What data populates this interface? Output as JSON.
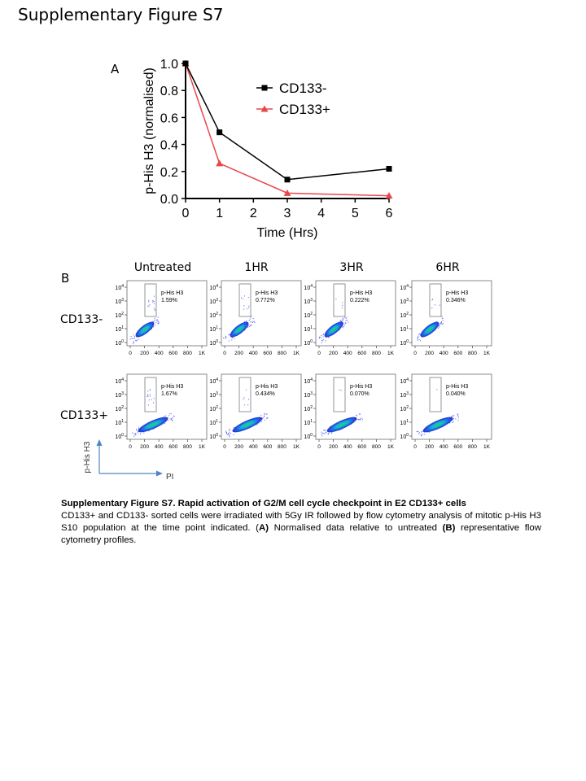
{
  "figure_title": "Supplementary Figure S7",
  "panel_a": {
    "letter": "A",
    "chart_data": {
      "type": "line",
      "xlabel": "Time (Hrs)",
      "ylabel": "p-His H3 (normalised)",
      "x_ticks": [
        "0",
        "1",
        "2",
        "3",
        "4",
        "5",
        "6"
      ],
      "y_ticks": [
        "0.0",
        "0.2",
        "0.4",
        "0.6",
        "0.8",
        "1.0"
      ],
      "xlim": [
        0,
        6
      ],
      "ylim": [
        0,
        1.0
      ],
      "grid": false,
      "legend_position": "top-right",
      "series": [
        {
          "name": "CD133-",
          "color": "#000000",
          "marker": "square",
          "x": [
            0,
            1,
            3,
            6
          ],
          "y": [
            1.0,
            0.49,
            0.14,
            0.22
          ]
        },
        {
          "name": "CD133+",
          "color": "#e8474a",
          "marker": "triangle",
          "x": [
            0,
            1,
            3,
            6
          ],
          "y": [
            1.0,
            0.26,
            0.04,
            0.02
          ]
        }
      ]
    }
  },
  "panel_b": {
    "letter": "B",
    "columns": [
      "Untreated",
      "1HR",
      "3HR",
      "6HR"
    ],
    "rows": [
      "CD133-",
      "CD133+"
    ],
    "gate_label": "p-His H3",
    "x_tick_labels": [
      "0",
      "200",
      "400",
      "600",
      "800",
      "1K"
    ],
    "y_tick_labels": [
      "0",
      "1",
      "2",
      "3",
      "4"
    ],
    "y_tick_base": "10",
    "percentages": [
      [
        "1.59%",
        "0.772%",
        "0.222%",
        "0.346%"
      ],
      [
        "1.67%",
        "0.434%",
        "0.070%",
        "0.040%"
      ]
    ],
    "gate_event_density": [
      [
        14,
        9,
        4,
        5
      ],
      [
        14,
        6,
        2,
        1
      ]
    ],
    "axis_key": {
      "y_label": "p-His H3",
      "x_label": "PI",
      "color": "#4a86c5"
    }
  },
  "caption": {
    "title": "Supplementary Figure S7.  Rapid activation of G2/M cell cycle checkpoint in E2 CD133+ cells",
    "body_1": "CD133+ and CD133- sorted cells were irradiated with 5Gy IR followed by flow cytometry analysis of mitotic p-His H3 S10 population at the time point indicated.  (",
    "mark_a": "A)",
    "body_2": " Normalised data relative to untreated ",
    "mark_b": "(B)",
    "body_3": " representative flow cytometry profiles."
  }
}
